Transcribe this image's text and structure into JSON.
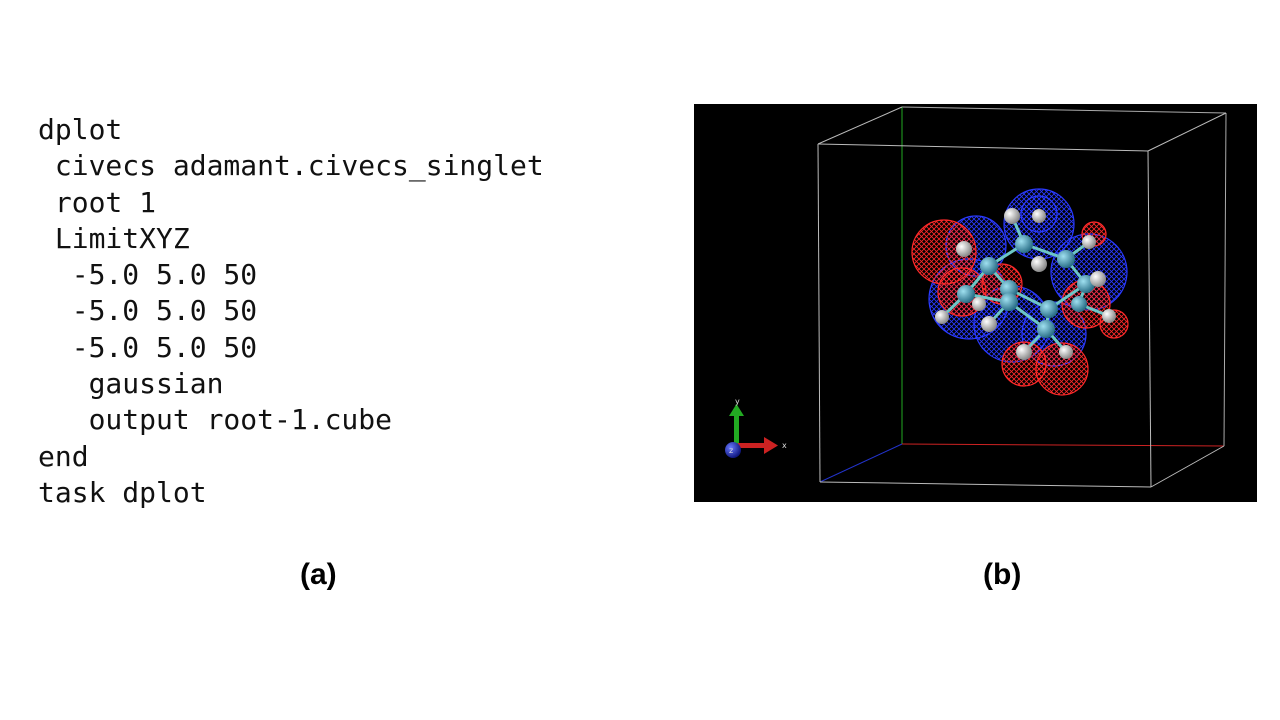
{
  "panel_a": {
    "code_lines": [
      "dplot",
      " civecs adamant.civecs_singlet",
      " root 1",
      " LimitXYZ",
      "  -5.0 5.0 50",
      "  -5.0 5.0 50",
      "  -5.0 5.0 50",
      "   gaussian",
      "   output root-1.cube",
      "end",
      "task dplot"
    ],
    "caption": "(a)"
  },
  "panel_b": {
    "caption": "(b)",
    "axis_labels": {
      "x": "x",
      "y": "y",
      "z": "z"
    },
    "colors": {
      "background": "#000000",
      "box_edge": "#bbbbbb",
      "x_axis": "#cc2222",
      "y_axis": "#22aa22",
      "z_axis": "#2233cc",
      "positive_lobe": "#ff2020",
      "negative_lobe": "#2030ff",
      "carbon_atom": "#4aa8c8",
      "hydrogen_atom": "#e8e8e8",
      "bond": "#6cc6c6"
    }
  }
}
